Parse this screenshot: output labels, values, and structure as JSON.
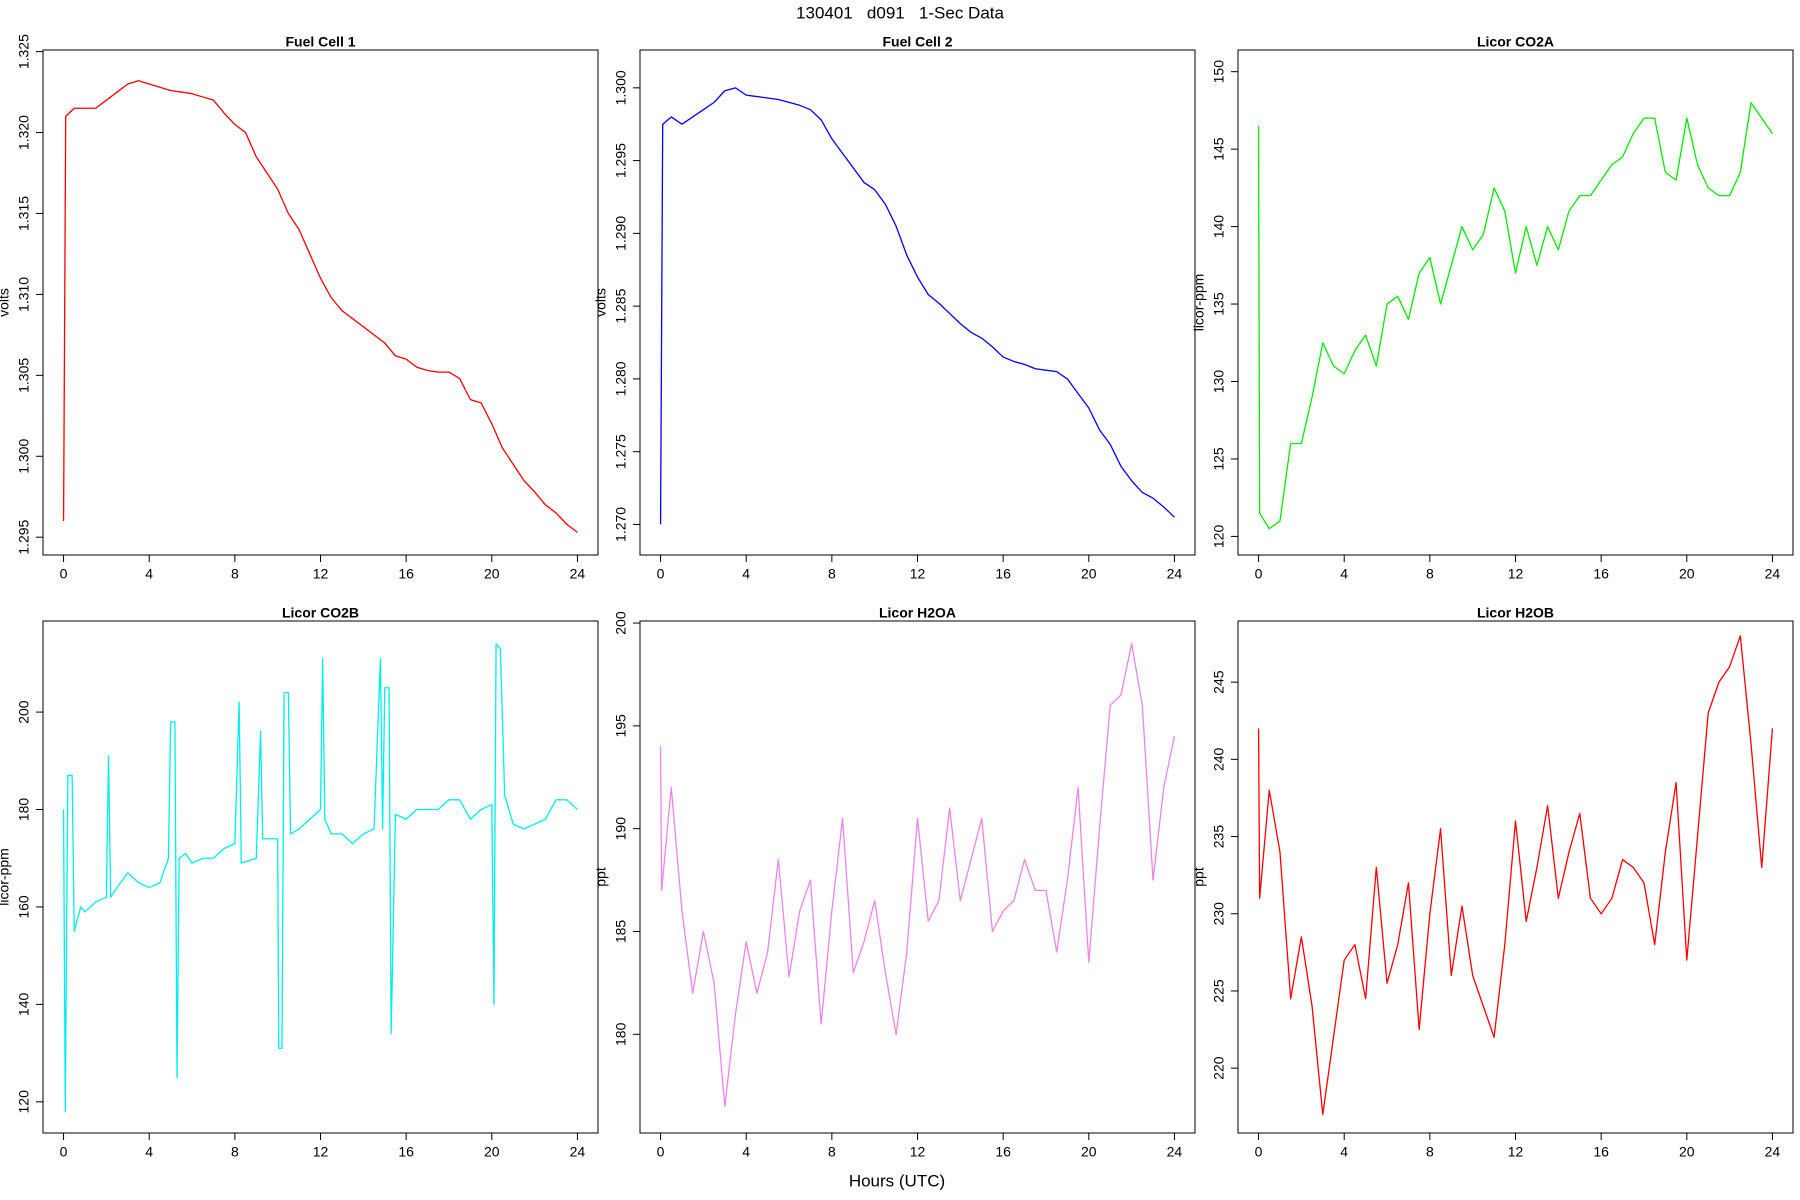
{
  "title": "130401   d091   1-Sec Data",
  "xlabel": "Hours (UTC)",
  "chart_data": [
    {
      "type": "line",
      "title": "Fuel Cell 1",
      "ylabel": "volts",
      "color": "#ff0000",
      "x": [
        0,
        0.1,
        0.5,
        1,
        1.5,
        2,
        2.5,
        3,
        3.5,
        4,
        4.5,
        5,
        5.5,
        6,
        6.5,
        7,
        7.5,
        8,
        8.5,
        9,
        9.5,
        10,
        10.5,
        11,
        11.5,
        12,
        12.5,
        13,
        13.5,
        14,
        14.5,
        15,
        15.5,
        16,
        16.5,
        17,
        17.5,
        18,
        18.5,
        19,
        19.5,
        20,
        20.5,
        21,
        21.5,
        22,
        22.5,
        23,
        23.5,
        24
      ],
      "values": [
        1.296,
        1.321,
        1.3215,
        1.3215,
        1.3215,
        1.322,
        1.3225,
        1.323,
        1.3232,
        1.323,
        1.3228,
        1.3226,
        1.3225,
        1.3224,
        1.3222,
        1.322,
        1.3212,
        1.3205,
        1.32,
        1.3185,
        1.3175,
        1.3165,
        1.315,
        1.314,
        1.3125,
        1.311,
        1.3098,
        1.309,
        1.3085,
        1.308,
        1.3075,
        1.307,
        1.3062,
        1.306,
        1.3055,
        1.3053,
        1.3052,
        1.3052,
        1.3048,
        1.3035,
        1.3033,
        1.302,
        1.3005,
        1.2995,
        1.2985,
        1.2978,
        1.297,
        1.2965,
        1.2958,
        1.2953
      ],
      "xlim": [
        -0.96,
        24.96
      ],
      "xticks": [
        0,
        4,
        8,
        12,
        16,
        20,
        24
      ],
      "ylim": [
        1.2939,
        1.3251
      ],
      "yticks": [
        1.295,
        {
          "value": 1.3,
          "label": "1.300"
        },
        1.305,
        {
          "value": 1.31,
          "label": "1.310"
        },
        1.315,
        {
          "value": 1.32,
          "label": "1.320"
        },
        1.325
      ]
    },
    {
      "type": "line",
      "title": "Fuel Cell 2",
      "ylabel": "volts",
      "color": "#0000ff",
      "x": [
        0,
        0.1,
        0.5,
        1,
        1.5,
        2,
        2.5,
        3,
        3.5,
        4,
        4.5,
        5,
        5.5,
        6,
        6.5,
        7,
        7.5,
        8,
        8.5,
        9,
        9.5,
        10,
        10.5,
        11,
        11.5,
        12,
        12.5,
        13,
        13.5,
        14,
        14.5,
        15,
        15.5,
        16,
        16.5,
        17,
        17.5,
        18,
        18.5,
        19,
        19.5,
        20,
        20.5,
        21,
        21.5,
        22,
        22.5,
        23,
        23.5,
        24
      ],
      "values": [
        1.27,
        1.2975,
        1.298,
        1.2975,
        1.298,
        1.2985,
        1.299,
        1.2998,
        1.3,
        1.2995,
        1.2994,
        1.2993,
        1.2992,
        1.299,
        1.2988,
        1.2985,
        1.2978,
        1.2965,
        1.2955,
        1.2945,
        1.2935,
        1.293,
        1.292,
        1.2905,
        1.2885,
        1.287,
        1.2858,
        1.2852,
        1.2845,
        1.2838,
        1.2832,
        1.2828,
        1.2822,
        1.2815,
        1.2812,
        1.281,
        1.2807,
        1.2806,
        1.2805,
        1.28,
        1.279,
        1.278,
        1.2765,
        1.2755,
        1.274,
        1.273,
        1.2722,
        1.2718,
        1.2712,
        1.2705
      ],
      "xlim": [
        -0.96,
        24.96
      ],
      "xticks": [
        0,
        4,
        8,
        12,
        16,
        20,
        24
      ],
      "ylim": [
        1.2679,
        1.3026
      ],
      "yticks": [
        {
          "value": 1.27,
          "label": "1.270"
        },
        1.275,
        {
          "value": 1.28,
          "label": "1.280"
        },
        1.285,
        {
          "value": 1.29,
          "label": "1.290"
        },
        1.295,
        {
          "value": 1.3,
          "label": "1.300"
        }
      ]
    },
    {
      "type": "line",
      "title": "Licor CO2A",
      "ylabel": "licor-ppm",
      "color": "#00ee00",
      "x": [
        0,
        0.05,
        0.5,
        1,
        1.5,
        2,
        2.5,
        3,
        3.5,
        4,
        4.5,
        5,
        5.5,
        6,
        6.5,
        7,
        7.5,
        8,
        8.5,
        9,
        9.5,
        10,
        10.5,
        11,
        11.5,
        12,
        12.5,
        13,
        13.5,
        14,
        14.5,
        15,
        15.5,
        16,
        16.5,
        17,
        17.5,
        18,
        18.5,
        19,
        19.5,
        20,
        20.5,
        21,
        21.5,
        22,
        22.5,
        23,
        23.5,
        24
      ],
      "values": [
        146.5,
        121.5,
        120.5,
        121,
        126,
        126,
        129,
        132.5,
        131,
        130.5,
        132,
        133,
        131,
        135,
        135.5,
        134,
        137,
        138,
        135,
        137.5,
        140,
        138.5,
        139.5,
        142.5,
        141,
        137,
        140,
        137.5,
        140,
        138.5,
        141,
        142,
        142,
        143,
        144,
        144.5,
        146,
        147,
        147,
        143.5,
        143,
        147,
        144,
        142.5,
        142,
        142,
        143.5,
        148,
        147,
        146
      ],
      "xlim": [
        -0.96,
        24.96
      ],
      "xticks": [
        0,
        4,
        8,
        12,
        16,
        20,
        24
      ],
      "ylim": [
        118.8,
        151.4
      ],
      "yticks": [
        120,
        125,
        130,
        135,
        140,
        145,
        150
      ]
    },
    {
      "type": "line",
      "title": "Licor CO2B",
      "ylabel": "licor-ppm",
      "color": "#00eeee",
      "x": [
        0,
        0.08,
        0.2,
        0.4,
        0.5,
        0.8,
        1,
        1.5,
        2,
        2.1,
        2.2,
        2.5,
        3,
        3.5,
        4,
        4.5,
        4.9,
        5,
        5.2,
        5.3,
        5.4,
        5.7,
        6,
        6.5,
        7,
        7.5,
        8,
        8.2,
        8.3,
        9,
        9.2,
        9.3,
        9.7,
        10,
        10.05,
        10.2,
        10.3,
        10.5,
        10.6,
        11,
        11.5,
        12,
        12.1,
        12.2,
        12.5,
        13,
        13.5,
        14,
        14.5,
        14.8,
        14.9,
        15,
        15.2,
        15.3,
        15.5,
        16,
        16.5,
        17,
        17.5,
        18,
        18.5,
        19,
        19.5,
        20,
        20.1,
        20.2,
        20.4,
        20.6,
        21,
        21.5,
        22,
        22.5,
        23,
        23.5,
        24
      ],
      "values": [
        180,
        118,
        187,
        187,
        155,
        160,
        159,
        161,
        162,
        191,
        162,
        164,
        167,
        165,
        164,
        165,
        170,
        198,
        198,
        125,
        170,
        171,
        169,
        170,
        170,
        172,
        173,
        202,
        169,
        170,
        196,
        174,
        174,
        174,
        131,
        131,
        204,
        204,
        175,
        176,
        178,
        180,
        211,
        178,
        175,
        175,
        173,
        175,
        176,
        211,
        176,
        205,
        205,
        134,
        179,
        178,
        180,
        180,
        180,
        182,
        182,
        178,
        180,
        181,
        140,
        214,
        213,
        183,
        177,
        176,
        177,
        178,
        182,
        182,
        180
      ],
      "xlim": [
        -0.96,
        24.96
      ],
      "xticks": [
        0,
        4,
        8,
        12,
        16,
        20,
        24
      ],
      "ylim": [
        113.6,
        218.7
      ],
      "yticks": [
        120,
        140,
        160,
        180,
        200
      ]
    },
    {
      "type": "line",
      "title": "Licor H2OA",
      "ylabel": "ppt",
      "color": "#ee82ee",
      "x": [
        0,
        0.05,
        0.5,
        1,
        1.5,
        2,
        2.5,
        3,
        3.5,
        4,
        4.5,
        5,
        5.5,
        6,
        6.5,
        7,
        7.5,
        8,
        8.5,
        9,
        9.5,
        10,
        10.5,
        11,
        11.5,
        12,
        12.5,
        13,
        13.5,
        14,
        14.5,
        15,
        15.5,
        16,
        16.5,
        17,
        17.5,
        18,
        18.5,
        19,
        19.5,
        20,
        20.5,
        21,
        21.5,
        22,
        22.5,
        23,
        23.5,
        24
      ],
      "values": [
        194,
        187,
        192,
        186,
        182,
        185,
        182.5,
        176.5,
        181,
        184.5,
        182,
        184,
        188.5,
        182.8,
        186,
        187.5,
        180.5,
        186,
        190.5,
        183,
        184.5,
        186.5,
        183,
        180,
        184,
        190.5,
        185.5,
        186.5,
        191,
        186.5,
        188.5,
        190.5,
        185,
        186,
        186.5,
        188.5,
        187,
        187,
        184,
        187.5,
        192,
        183.5,
        190,
        196,
        196.5,
        199,
        196,
        187.5,
        192,
        194.5
      ],
      "xlim": [
        -0.96,
        24.96
      ],
      "xticks": [
        0,
        4,
        8,
        12,
        16,
        20,
        24
      ],
      "ylim": [
        175.2,
        200.1
      ],
      "yticks": [
        180,
        185,
        190,
        195,
        200
      ]
    },
    {
      "type": "line",
      "title": "Licor H2OB",
      "ylabel": "ppt",
      "color": "#ff0000",
      "x": [
        0,
        0.05,
        0.5,
        1,
        1.5,
        2,
        2.5,
        3,
        3.5,
        4,
        4.5,
        5,
        5.5,
        6,
        6.5,
        7,
        7.5,
        8,
        8.5,
        9,
        9.5,
        10,
        10.5,
        11,
        11.5,
        12,
        12.5,
        13,
        13.5,
        14,
        14.5,
        15,
        15.5,
        16,
        16.5,
        17,
        17.5,
        18,
        18.5,
        19,
        19.5,
        20,
        20.5,
        21,
        21.5,
        22,
        22.5,
        23,
        23.5,
        24
      ],
      "values": [
        242,
        231,
        238,
        234,
        224.5,
        228.5,
        224,
        217,
        222,
        227,
        228,
        224.5,
        233,
        225.5,
        228,
        232,
        222.5,
        230,
        235.5,
        226,
        230.5,
        226,
        224,
        222,
        228,
        236,
        229.5,
        233,
        237,
        231,
        234,
        236.5,
        231,
        230,
        231,
        233.5,
        233,
        232,
        228,
        234,
        238.5,
        227,
        235,
        243,
        245,
        246,
        248,
        241,
        233,
        242
      ],
      "xlim": [
        -0.96,
        24.96
      ],
      "xticks": [
        0,
        4,
        8,
        12,
        16,
        20,
        24
      ],
      "ylim": [
        215.8,
        248.96
      ],
      "yticks": [
        220,
        225,
        230,
        235,
        240,
        245
      ]
    }
  ]
}
